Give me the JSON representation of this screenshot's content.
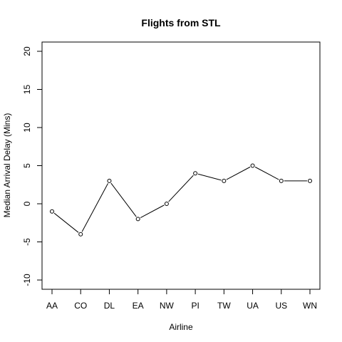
{
  "chart_data": {
    "type": "line",
    "title": "Flights from STL",
    "xlabel": "Airline",
    "ylabel": "Median Arrival Delay (Mins)",
    "categories": [
      "AA",
      "CO",
      "DL",
      "EA",
      "NW",
      "PI",
      "TW",
      "UA",
      "US",
      "WN"
    ],
    "values": [
      -1,
      -4,
      3,
      -2,
      0,
      4,
      3,
      5,
      3,
      3
    ],
    "ylim": [
      -10,
      20
    ],
    "yticks": [
      -10,
      -5,
      0,
      5,
      10,
      15,
      20
    ],
    "grid": false,
    "legend": "none",
    "line_color": "#000000",
    "marker": "open-circle"
  }
}
